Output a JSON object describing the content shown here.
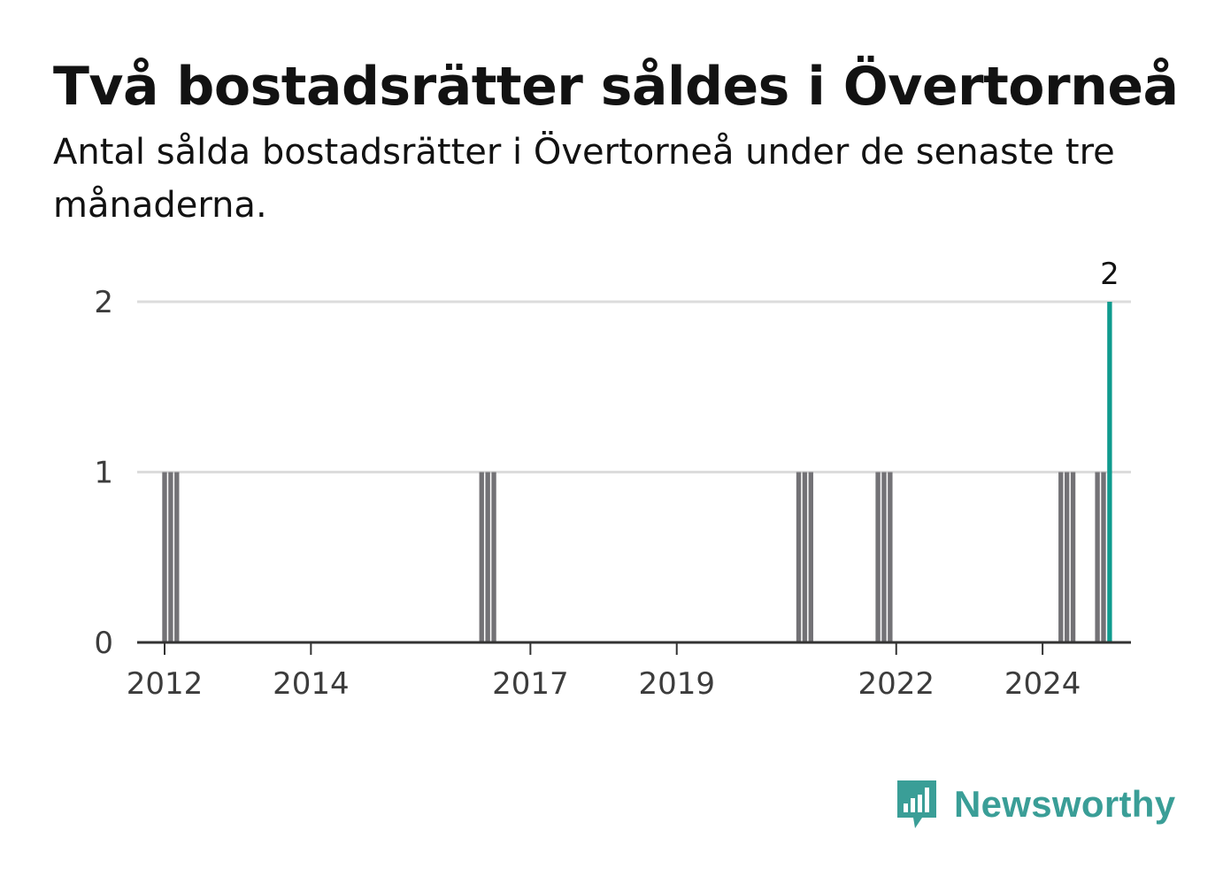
{
  "header": {
    "title": "Två bostadsrätter såldes i Övertorneå",
    "subtitle": "Antal sålda bostadsrätter i Övertorneå under de senaste tre månaderna."
  },
  "brand": {
    "name": "Newsworthy",
    "icon": "bar-chart-speech-bubble-icon",
    "color": "#3a9e97"
  },
  "colors": {
    "bar": "#737276",
    "highlight": "#0f9b8e",
    "grid": "#dcdcdc",
    "axis": "#333333"
  },
  "chart_data": {
    "type": "bar",
    "xlim": [
      "2011-09",
      "2025-03"
    ],
    "ylim": [
      0,
      2
    ],
    "y_ticks": [
      0,
      1,
      2
    ],
    "x_ticks": [
      "2012",
      "2014",
      "2017",
      "2019",
      "2022",
      "2024"
    ],
    "x_tick_dates": [
      "2012-01",
      "2014-01",
      "2017-01",
      "2019-01",
      "2022-01",
      "2024-01"
    ],
    "grid": true,
    "series": [
      {
        "points": [
          {
            "x": "2012-01",
            "y": 1
          },
          {
            "x": "2012-02",
            "y": 1
          },
          {
            "x": "2012-03",
            "y": 1
          },
          {
            "x": "2016-05",
            "y": 1
          },
          {
            "x": "2016-06",
            "y": 1
          },
          {
            "x": "2016-07",
            "y": 1
          },
          {
            "x": "2020-09",
            "y": 1
          },
          {
            "x": "2020-10",
            "y": 1
          },
          {
            "x": "2020-11",
            "y": 1
          },
          {
            "x": "2021-10",
            "y": 1
          },
          {
            "x": "2021-11",
            "y": 1
          },
          {
            "x": "2021-12",
            "y": 1
          },
          {
            "x": "2024-04",
            "y": 1
          },
          {
            "x": "2024-05",
            "y": 1
          },
          {
            "x": "2024-06",
            "y": 1
          },
          {
            "x": "2024-10",
            "y": 1
          },
          {
            "x": "2024-11",
            "y": 1
          }
        ]
      }
    ],
    "highlight": {
      "x": "2024-12",
      "y": 2,
      "label": "2"
    }
  }
}
